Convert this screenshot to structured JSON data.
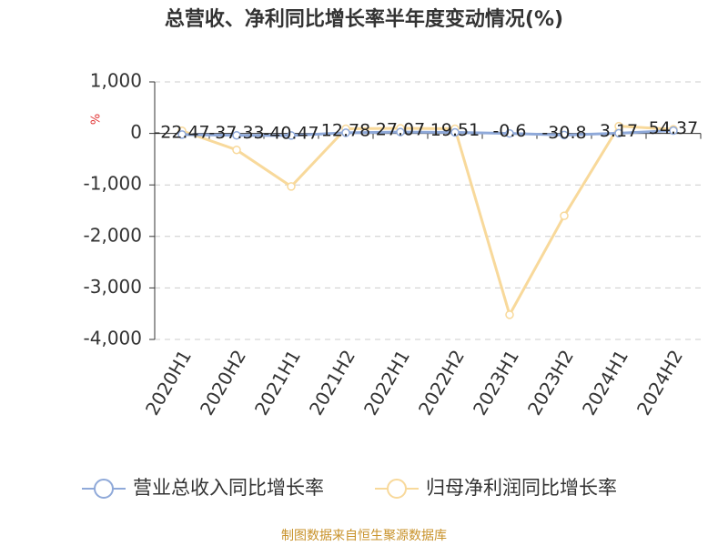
{
  "chart_data": {
    "type": "line",
    "title": "总营收、净利同比增长率半年度变动情况(%)",
    "y_label": "%",
    "categories": [
      "2020H1",
      "2020H2",
      "2021H1",
      "2021H2",
      "2022H1",
      "2022H2",
      "2023H1",
      "2023H2",
      "2024H1",
      "2024H2"
    ],
    "series": [
      {
        "name": "营业总收入同比增长率",
        "color": "#8fa9d9",
        "values": [
          -22.47,
          -37.33,
          -40.47,
          12.78,
          27.07,
          19.51,
          -0.6,
          -30.8,
          3.17,
          54.37
        ]
      },
      {
        "name": "归母净利润同比增长率",
        "color": "#f8d99b",
        "values": [
          50,
          -320,
          -1030,
          90,
          100,
          90,
          -3520,
          -1600,
          140,
          80
        ]
      }
    ],
    "ylim": [
      -4000,
      1000
    ],
    "yticks": [
      {
        "value": 1000,
        "label": "1,000"
      },
      0,
      {
        "value": -1000,
        "label": "-1,000"
      },
      {
        "value": -2000,
        "label": "-2,000"
      },
      {
        "value": -3000,
        "label": "-3,000"
      },
      {
        "value": -4000,
        "label": "-4,000"
      }
    ],
    "grid": true,
    "legend": "bottom",
    "source": "制图数据来自恒生聚源数据库"
  }
}
